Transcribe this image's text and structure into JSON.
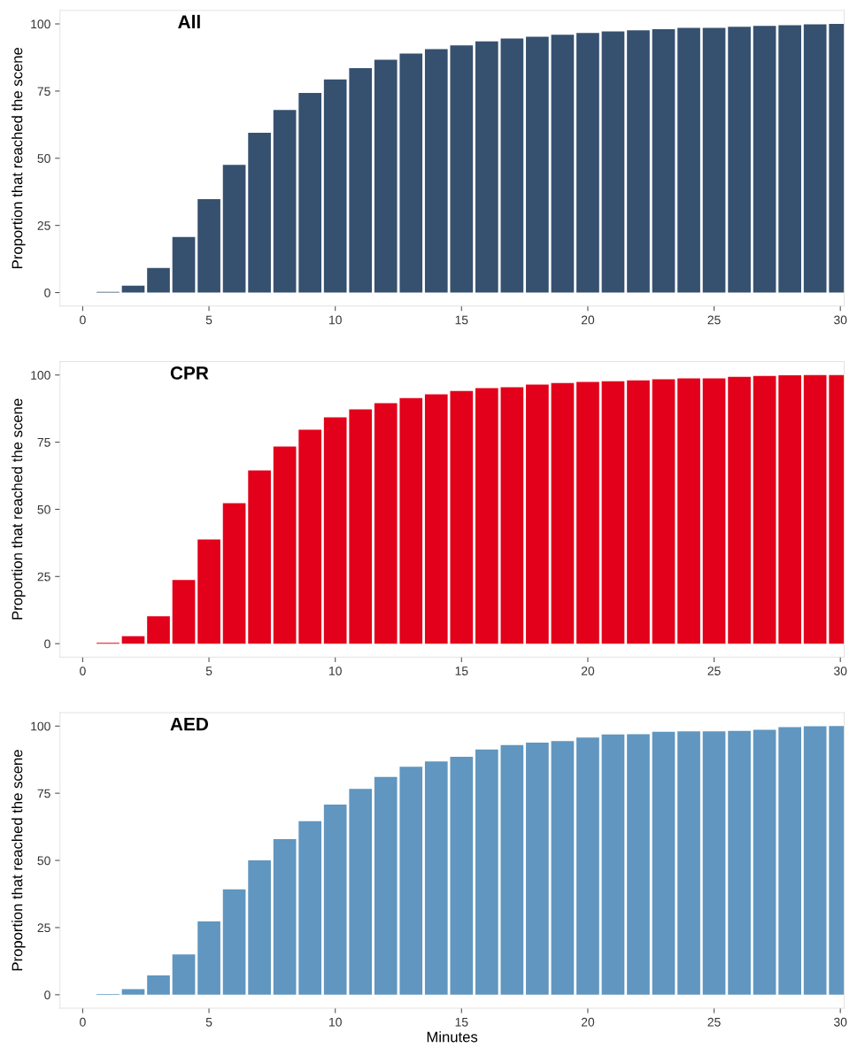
{
  "chart_data": [
    {
      "type": "bar",
      "title": "All",
      "ylabel": "Proportion that reached the scene",
      "x": [
        1,
        2,
        3,
        4,
        5,
        6,
        7,
        8,
        9,
        10,
        11,
        12,
        13,
        14,
        15,
        16,
        17,
        18,
        19,
        20,
        21,
        22,
        23,
        24,
        25,
        26,
        27,
        28,
        29,
        30
      ],
      "series": [
        {
          "color": "#36506f",
          "values": [
            0.3,
            2.6,
            9.2,
            20.7,
            34.8,
            47.5,
            59.5,
            68,
            74.3,
            79.3,
            83.5,
            86.7,
            89,
            90.6,
            92,
            93.5,
            94.6,
            95.2,
            96,
            96.6,
            97.2,
            97.6,
            98,
            98.5,
            98.5,
            98.9,
            99.3,
            99.5,
            99.8,
            100
          ]
        }
      ],
      "xlim": [
        -0.9,
        30.15
      ],
      "ylim": [
        -5,
        105
      ],
      "xticks": [
        0,
        5,
        10,
        15,
        20,
        25,
        30
      ],
      "yticks": [
        0,
        25,
        50,
        75,
        100
      ],
      "grid": false,
      "legend": false
    },
    {
      "type": "bar",
      "title": "CPR",
      "ylabel": "Proportion that reached the scene",
      "x": [
        1,
        2,
        3,
        4,
        5,
        6,
        7,
        8,
        9,
        10,
        11,
        12,
        13,
        14,
        15,
        16,
        17,
        18,
        19,
        20,
        21,
        22,
        23,
        24,
        25,
        26,
        27,
        28,
        29,
        30
      ],
      "series": [
        {
          "color": "#e2001a",
          "values": [
            0.3,
            2.8,
            10.2,
            23.7,
            38.8,
            52.3,
            64.5,
            73.4,
            79.6,
            84.2,
            87.2,
            89.5,
            91.4,
            92.8,
            94,
            95.1,
            95.4,
            96.4,
            97,
            97.4,
            97.7,
            98,
            98.4,
            98.7,
            98.7,
            99.3,
            99.6,
            99.9,
            100,
            100
          ]
        }
      ],
      "xlim": [
        -0.9,
        30.15
      ],
      "ylim": [
        -5,
        105
      ],
      "xticks": [
        0,
        5,
        10,
        15,
        20,
        25,
        30
      ],
      "yticks": [
        0,
        25,
        50,
        75,
        100
      ],
      "grid": false,
      "legend": false
    },
    {
      "type": "bar",
      "title": "AED",
      "ylabel": "Proportion that reached the scene",
      "xlabel": "Minutes",
      "x": [
        1,
        2,
        3,
        4,
        5,
        6,
        7,
        8,
        9,
        10,
        11,
        12,
        13,
        14,
        15,
        16,
        17,
        18,
        19,
        20,
        21,
        22,
        23,
        24,
        25,
        26,
        27,
        28,
        29,
        30
      ],
      "series": [
        {
          "color": "#6096bf",
          "values": [
            0.3,
            2.1,
            7.2,
            15,
            27.3,
            39.2,
            50,
            57.9,
            64.6,
            70.8,
            76.6,
            81.1,
            84.9,
            86.8,
            88.6,
            91.3,
            92.9,
            93.8,
            94.4,
            95.7,
            96.9,
            97,
            97.9,
            98,
            98,
            98.2,
            98.6,
            99.6,
            99.9,
            100
          ]
        }
      ],
      "xlim": [
        -0.9,
        30.15
      ],
      "ylim": [
        -5,
        105
      ],
      "xticks": [
        0,
        5,
        10,
        15,
        20,
        25,
        30
      ],
      "yticks": [
        0,
        25,
        50,
        75,
        100
      ],
      "grid": false,
      "legend": false
    }
  ]
}
